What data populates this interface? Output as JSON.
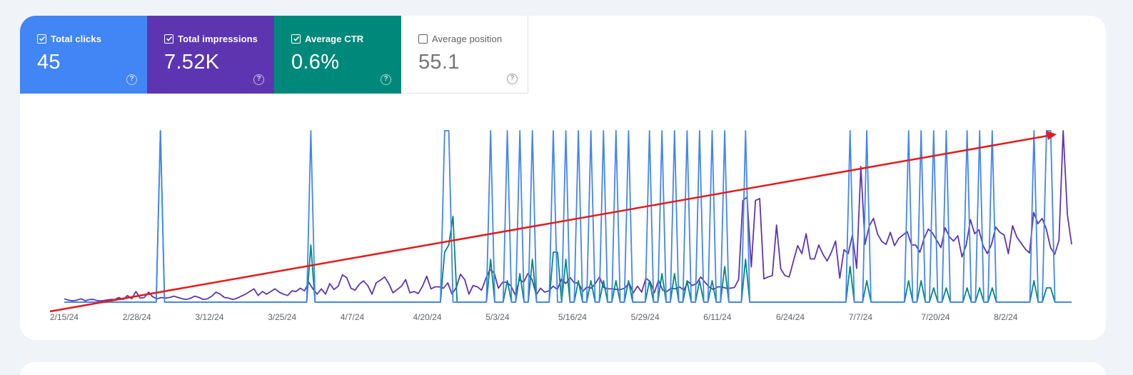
{
  "metrics": [
    {
      "label": "Total clicks",
      "value": "45",
      "checked": true,
      "color": "#4285f4"
    },
    {
      "label": "Total impressions",
      "value": "7.52K",
      "checked": true,
      "color": "#5e35b1"
    },
    {
      "label": "Average CTR",
      "value": "0.6%",
      "checked": true,
      "color": "#00897b"
    },
    {
      "label": "Average position",
      "value": "55.1",
      "checked": false,
      "color": "#ffffff"
    }
  ],
  "help_glyph": "?",
  "chart_data": {
    "type": "line",
    "x_tick_labels": [
      "2/15/24",
      "2/28/24",
      "3/12/24",
      "3/25/24",
      "4/7/24",
      "4/20/24",
      "5/3/24",
      "5/16/24",
      "5/29/24",
      "6/11/24",
      "6/24/24",
      "7/7/24",
      "7/20/24",
      "8/2/24"
    ],
    "series": [
      {
        "name": "Total impressions",
        "color": "#5e35b1",
        "values": [
          5,
          3,
          2,
          3,
          5,
          2,
          4,
          4,
          2,
          2,
          3,
          4,
          4,
          7,
          4,
          10,
          5,
          16,
          6,
          7,
          15,
          8,
          5,
          7,
          6,
          7,
          9,
          7,
          5,
          4,
          6,
          9,
          7,
          4,
          5,
          9,
          15,
          12,
          7,
          6,
          4,
          6,
          9,
          12,
          16,
          20,
          10,
          16,
          12,
          16,
          20,
          15,
          12,
          10,
          17,
          16,
          21,
          17,
          30,
          20,
          12,
          20,
          12,
          28,
          19,
          24,
          41,
          37,
          21,
          18,
          27,
          32,
          25,
          12,
          29,
          33,
          38,
          28,
          14,
          19,
          24,
          34,
          14,
          16,
          13,
          24,
          39,
          20,
          23,
          23,
          21,
          29,
          12,
          22,
          42,
          34,
          12,
          25,
          23,
          18,
          35,
          49,
          44,
          21,
          30,
          30,
          24,
          11,
          34,
          30,
          43,
          34,
          11,
          21,
          15,
          17,
          24,
          19,
          35,
          28,
          37,
          29,
          29,
          16,
          23,
          21,
          28,
          38,
          22,
          20,
          20,
          19,
          19,
          21,
          29,
          14,
          24,
          15,
          36,
          31,
          14,
          33,
          18,
          16,
          21,
          20,
          23,
          18,
          31,
          25,
          28,
          38,
          30,
          23,
          19,
          23,
          23,
          21,
          21,
          22,
          34,
          153,
          158,
          53,
          153,
          156,
          35,
          38,
          40,
          116,
          50,
          40,
          38,
          62,
          85,
          73,
          103,
          65,
          65,
          86,
          72,
          62,
          75,
          92,
          36,
          79,
          73,
          101,
          51,
          204,
          87,
          115,
          126,
          102,
          91,
          87,
          105,
          85,
          96,
          101,
          106,
          86,
          86,
          75,
          96,
          110,
          104,
          93,
          82,
          112,
          98,
          92,
          100,
          68,
          86,
          124,
          103,
          109,
          85,
          73,
          87,
          113,
          105,
          101,
          73,
          115,
          98,
          89,
          80,
          74,
          135,
          118,
          126,
          110,
          82,
          72,
          93,
          258,
          132,
          87
        ]
      },
      {
        "name": "Total clicks",
        "color": "#4285f4",
        "values": [
          0,
          0,
          0,
          0,
          0,
          0,
          0,
          0,
          0,
          0,
          0,
          0,
          0,
          0,
          0,
          0,
          0,
          0,
          0,
          0,
          0,
          0,
          0,
          1,
          0,
          0,
          0,
          0,
          0,
          0,
          0,
          0,
          0,
          0,
          0,
          0,
          0,
          0,
          0,
          0,
          0,
          0,
          0,
          0,
          0,
          0,
          0,
          0,
          0,
          0,
          0,
          0,
          0,
          0,
          0,
          0,
          0,
          0,
          0,
          1,
          0,
          0,
          0,
          0,
          0,
          0,
          0,
          0,
          0,
          0,
          0,
          0,
          0,
          0,
          0,
          0,
          0,
          0,
          0,
          0,
          0,
          0,
          0,
          0,
          0,
          0,
          0,
          0,
          0,
          0,
          0,
          1,
          1,
          0,
          0,
          0,
          0,
          0,
          0,
          0,
          0,
          0,
          1,
          0,
          0,
          0,
          1,
          0,
          0,
          1,
          0,
          0,
          1,
          0,
          0,
          0,
          0,
          1,
          0,
          0,
          1,
          0,
          0,
          1,
          0,
          0,
          1,
          0,
          0,
          1,
          0,
          0,
          1,
          0,
          0,
          1,
          0,
          0,
          0,
          0,
          1,
          0,
          0,
          1,
          0,
          0,
          1,
          0,
          0,
          1,
          0,
          0,
          1,
          0,
          0,
          1,
          0,
          0,
          1,
          0,
          0,
          0,
          0,
          1,
          0,
          0,
          0,
          0,
          0,
          0,
          0,
          0,
          0,
          0,
          0,
          0,
          0,
          0,
          0,
          0,
          0,
          0,
          0,
          0,
          0,
          0,
          0,
          0,
          1,
          0,
          0,
          0,
          1,
          0,
          0,
          0,
          0,
          0,
          0,
          0,
          0,
          0,
          1,
          0,
          0,
          1,
          0,
          0,
          1,
          0,
          0,
          1,
          0,
          0,
          0,
          0,
          1,
          0,
          0,
          1,
          0,
          0,
          1,
          0,
          0,
          0,
          0,
          0,
          0,
          0,
          0,
          0,
          1,
          0,
          0,
          1,
          1,
          0,
          0,
          0,
          0,
          0
        ]
      },
      {
        "name": "Average CTR",
        "color": "#00897b",
        "values": [
          0,
          0,
          0,
          0,
          0,
          0,
          0,
          0,
          0,
          0,
          0,
          0,
          0,
          0,
          0,
          0,
          0,
          0,
          0,
          0,
          0,
          0,
          0,
          2.4,
          0,
          0,
          0,
          0,
          0,
          0,
          0,
          0,
          0,
          0,
          0,
          0,
          0,
          0,
          0,
          0,
          0,
          0,
          0,
          0,
          0,
          0,
          0,
          0,
          0,
          0,
          0,
          0,
          0,
          0,
          0,
          0,
          0,
          0,
          0,
          0.8,
          0,
          0,
          0,
          0,
          0,
          0,
          0,
          0,
          0,
          0,
          0,
          0,
          0,
          0,
          0,
          0,
          0,
          0,
          0,
          0,
          0,
          0,
          0,
          0,
          0,
          0,
          0,
          0,
          0,
          0,
          0,
          0.7,
          0.8,
          1.2,
          0,
          0,
          0,
          0,
          0,
          0,
          0,
          0,
          0.6,
          0,
          0,
          0,
          0.3,
          0,
          0,
          0.4,
          0,
          0,
          0.6,
          0,
          0,
          0,
          0,
          0.7,
          0.7,
          0,
          0.6,
          0,
          0,
          0.3,
          0,
          0,
          0.3,
          0,
          0,
          0.3,
          0,
          0,
          0.3,
          0,
          0,
          0.3,
          0,
          0,
          0,
          0,
          0.3,
          0,
          0,
          0.4,
          0,
          0,
          0.4,
          0,
          0,
          0.3,
          0,
          0,
          0.3,
          0,
          0,
          0.3,
          0,
          0,
          0.5,
          0,
          0,
          0,
          0,
          0.6,
          0,
          0,
          0,
          0,
          0,
          0,
          0,
          0,
          0,
          0,
          0,
          0,
          0,
          0,
          0,
          0,
          0,
          0,
          0,
          0,
          0,
          0,
          0,
          0,
          0.5,
          0,
          0,
          0,
          0.3,
          0,
          0,
          0,
          0,
          0,
          0,
          0,
          0,
          0,
          0.3,
          0,
          0,
          0.3,
          0,
          0,
          0.2,
          0,
          0,
          0.2,
          0,
          0,
          0,
          0,
          0.2,
          0,
          0,
          0.2,
          0,
          0,
          0.2,
          0,
          0,
          0,
          0,
          0,
          0,
          0,
          0,
          0,
          0.3,
          0,
          0,
          0.2,
          0.2,
          0,
          0,
          0,
          0,
          0
        ]
      }
    ],
    "grid": false,
    "legend": "none"
  }
}
